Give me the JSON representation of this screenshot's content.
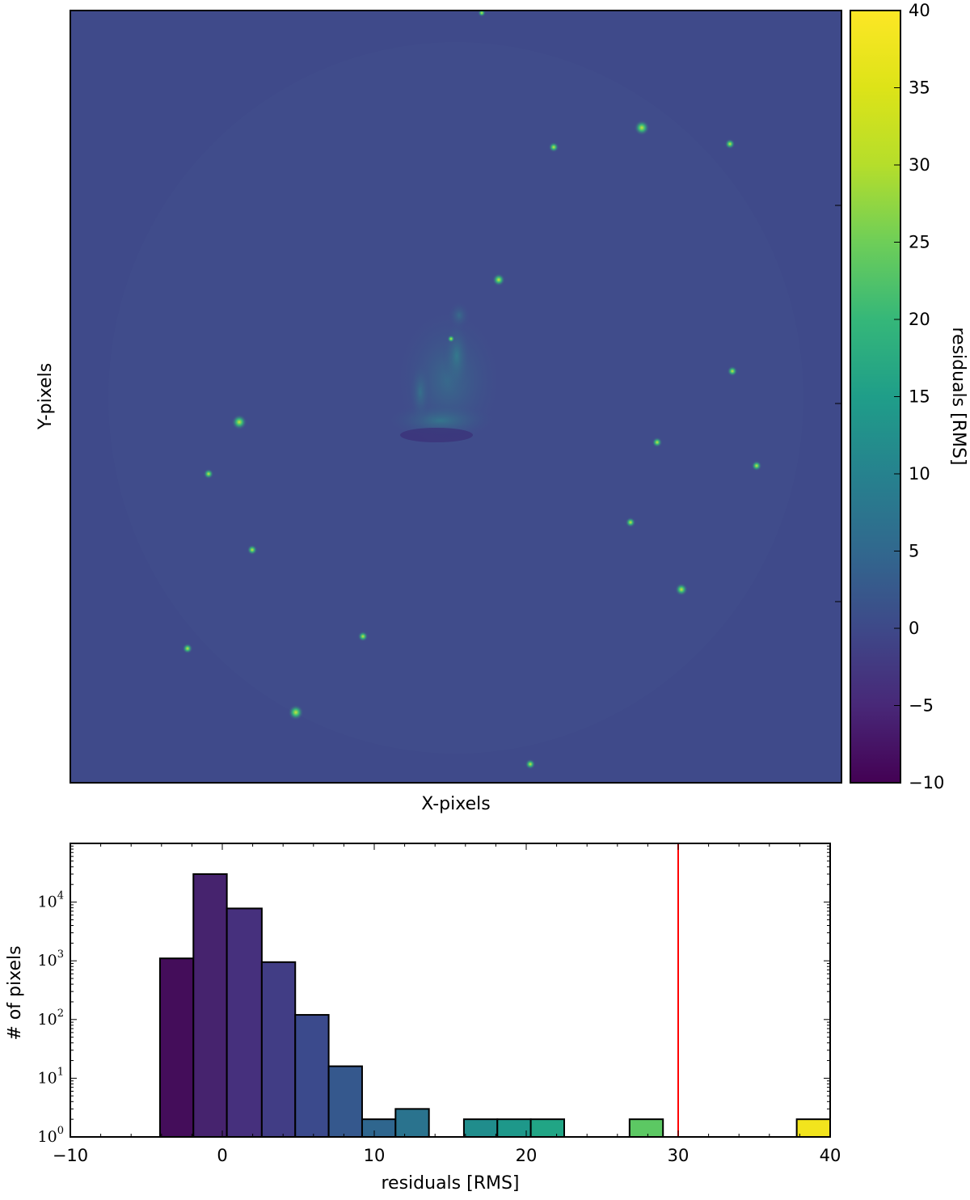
{
  "image_panel": {
    "xlabel": "X-pixels",
    "ylabel": "Y-pixels",
    "background_color": "#3f4a8a",
    "colorbar": {
      "label": "residuals [RMS]",
      "vmin": -10,
      "vmax": 40,
      "ticks": [
        -10,
        -5,
        0,
        5,
        10,
        15,
        20,
        25,
        30,
        35,
        40
      ],
      "tick_labels": [
        "−10",
        "−5",
        "0",
        "5",
        "10",
        "15",
        "20",
        "25",
        "30",
        "35",
        "40"
      ],
      "colormap": "viridis"
    }
  },
  "chart_data": {
    "type": "bar",
    "title": "",
    "xlabel": "residuals [RMS]",
    "ylabel": "# of pixels",
    "xlim": [
      -10,
      40
    ],
    "ylim": [
      1,
      100000
    ],
    "yscale": "log",
    "x_ticks": [
      -10,
      0,
      10,
      20,
      30,
      40
    ],
    "x_tick_labels": [
      "−10",
      "0",
      "10",
      "20",
      "30",
      "40"
    ],
    "y_ticks": [
      1,
      10,
      100,
      1000,
      10000
    ],
    "y_tick_labels": [
      {
        "base": "10",
        "exp": "0"
      },
      {
        "base": "10",
        "exp": "1"
      },
      {
        "base": "10",
        "exp": "2"
      },
      {
        "base": "10",
        "exp": "3"
      },
      {
        "base": "10",
        "exp": "4"
      }
    ],
    "bins": [
      {
        "x0": -4.1,
        "x1": -1.9,
        "count": 1100,
        "color": "#440d5a"
      },
      {
        "x0": -1.9,
        "x1": 0.3,
        "count": 30000,
        "color": "#46236e"
      },
      {
        "x0": 0.3,
        "x1": 2.6,
        "count": 7800,
        "color": "#46307d"
      },
      {
        "x0": 2.6,
        "x1": 4.8,
        "count": 950,
        "color": "#413d85"
      },
      {
        "x0": 4.8,
        "x1": 7.0,
        "count": 120,
        "color": "#3b4a8c"
      },
      {
        "x0": 7.0,
        "x1": 9.2,
        "count": 16,
        "color": "#35588d"
      },
      {
        "x0": 9.2,
        "x1": 11.4,
        "count": 2,
        "color": "#2f668e"
      },
      {
        "x0": 11.4,
        "x1": 13.6,
        "count": 3,
        "color": "#2a738e"
      },
      {
        "x0": 15.9,
        "x1": 18.1,
        "count": 2,
        "color": "#208d8c"
      },
      {
        "x0": 18.1,
        "x1": 20.3,
        "count": 2,
        "color": "#1e988a"
      },
      {
        "x0": 20.3,
        "x1": 22.5,
        "count": 2,
        "color": "#21a585"
      },
      {
        "x0": 26.8,
        "x1": 29.0,
        "count": 2,
        "color": "#5cc863"
      },
      {
        "x0": 37.8,
        "x1": 40.0,
        "count": 2,
        "color": "#f2e41d"
      }
    ],
    "vline": {
      "x": 30,
      "color": "#ff0000"
    }
  }
}
